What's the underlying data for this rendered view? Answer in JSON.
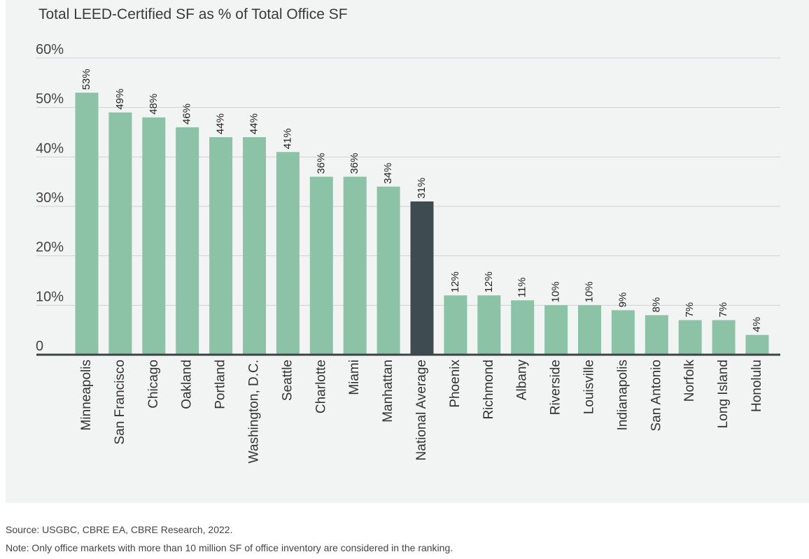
{
  "chart_data": {
    "type": "bar",
    "title": "Total LEED-Certified SF as % of Total Office SF",
    "xlabel": "",
    "ylabel": "",
    "ylim": [
      0,
      60
    ],
    "yticks": [
      0,
      10,
      20,
      30,
      40,
      50,
      60
    ],
    "ytick_labels": [
      "0",
      "10%",
      "20%",
      "30%",
      "40%",
      "50%",
      "60%"
    ],
    "grid": true,
    "categories": [
      "Minneapolis",
      "San Francisco",
      "Chicago",
      "Oakland",
      "Portland",
      "Washington, D.C.",
      "Seattle",
      "Charlotte",
      "Miami",
      "Manhattan",
      "National Average",
      "Phoenix",
      "Richmond",
      "Albany",
      "Riverside",
      "Louisville",
      "Indianapolis",
      "San Antonio",
      "Norfolk",
      "Long Island",
      "Honolulu"
    ],
    "values": [
      53,
      49,
      48,
      46,
      44,
      44,
      41,
      36,
      36,
      34,
      31,
      12,
      12,
      11,
      10,
      10,
      9,
      8,
      7,
      7,
      4
    ],
    "data_labels": [
      "53%",
      "49%",
      "48%",
      "46%",
      "44%",
      "44%",
      "41%",
      "36%",
      "36%",
      "34%",
      "31%",
      "12%",
      "12%",
      "11%",
      "10%",
      "10%",
      "9%",
      "8%",
      "7%",
      "7%",
      "4%"
    ],
    "highlight_category": "National Average",
    "colors": {
      "bar": "#8cc3a6",
      "highlight": "#3f4c4f",
      "grid": "#cfd3d3",
      "axis": "#3a4446"
    }
  },
  "footnotes": {
    "source": "Source: USGBC, CBRE EA, CBRE Research, 2022.",
    "note": "Note: Only office markets with more than 10 million SF of office inventory are considered in the ranking."
  }
}
